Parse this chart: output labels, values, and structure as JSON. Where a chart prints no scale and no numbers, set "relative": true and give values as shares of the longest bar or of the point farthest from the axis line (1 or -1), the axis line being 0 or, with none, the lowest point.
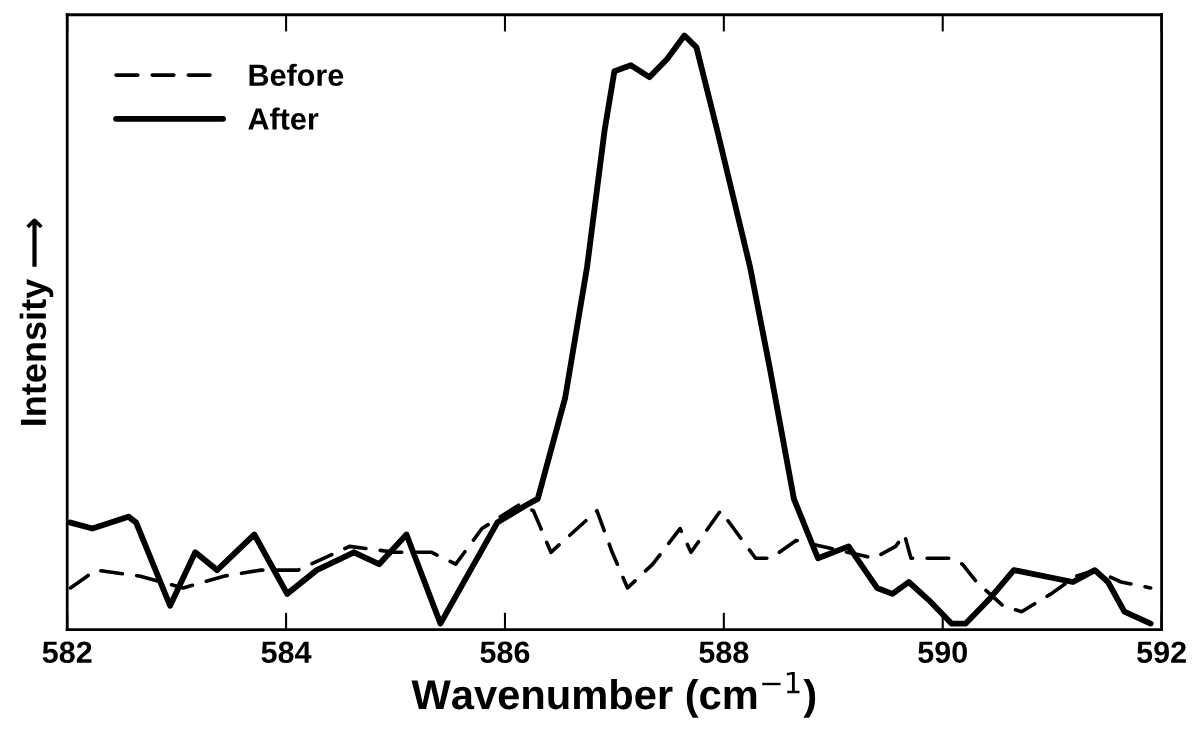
{
  "chart_data": {
    "type": "line",
    "relative": true,
    "xlabel": "Wavenumber (cm$^{−1}$)",
    "ylabel": "Intensity ⟶",
    "xlim": [
      582,
      592
    ],
    "xticks": [
      582,
      584,
      586,
      588,
      590,
      592
    ],
    "tick_labels": "x",
    "grid": false,
    "legend": "top left",
    "series": [
      {
        "name": "Before",
        "color": "#000000",
        "line_style": "dashed",
        "x": [
          582.03,
          582.26,
          582.66,
          583.06,
          583.44,
          583.77,
          584.11,
          584.58,
          584.99,
          585.33,
          585.55,
          585.79,
          586.13,
          586.26,
          586.42,
          586.84,
          586.98,
          587.12,
          587.35,
          587.6,
          587.7,
          587.97,
          588.29,
          588.43,
          588.66,
          589.37,
          589.57,
          589.65,
          589.71,
          590.08,
          590.18,
          590.31,
          590.55,
          590.72,
          590.99,
          591.22,
          591.39,
          591.63,
          591.9
        ],
        "values": [
          0.07,
          0.1,
          0.09,
          0.07,
          0.09,
          0.1,
          0.1,
          0.14,
          0.13,
          0.13,
          0.11,
          0.17,
          0.21,
          0.2,
          0.13,
          0.2,
          0.13,
          0.07,
          0.11,
          0.17,
          0.13,
          0.2,
          0.12,
          0.12,
          0.15,
          0.12,
          0.14,
          0.16,
          0.12,
          0.12,
          0.11,
          0.08,
          0.04,
          0.03,
          0.06,
          0.09,
          0.1,
          0.08,
          0.07
        ]
      },
      {
        "name": "After",
        "color": "#000000",
        "line_style": "solid",
        "x": [
          582.03,
          582.23,
          582.56,
          582.63,
          582.94,
          583.17,
          583.37,
          583.71,
          584.01,
          584.28,
          584.62,
          584.85,
          585.1,
          585.41,
          585.93,
          586.2,
          586.3,
          586.55,
          586.75,
          586.91,
          587.0,
          587.15,
          587.32,
          587.48,
          587.64,
          587.75,
          587.94,
          588.24,
          588.42,
          588.64,
          588.86,
          589.14,
          589.4,
          589.54,
          589.69,
          589.87,
          590.08,
          590.21,
          590.42,
          590.65,
          591.19,
          591.39,
          591.51,
          591.66,
          591.9
        ],
        "values": [
          0.18,
          0.17,
          0.19,
          0.18,
          0.04,
          0.13,
          0.1,
          0.16,
          0.06,
          0.1,
          0.13,
          0.11,
          0.16,
          0.01,
          0.18,
          0.21,
          0.22,
          0.39,
          0.61,
          0.84,
          0.94,
          0.95,
          0.93,
          0.96,
          1.0,
          0.98,
          0.84,
          0.61,
          0.44,
          0.22,
          0.12,
          0.14,
          0.07,
          0.06,
          0.08,
          0.05,
          0.01,
          0.01,
          0.05,
          0.1,
          0.08,
          0.1,
          0.08,
          0.03,
          0.01
        ]
      }
    ]
  }
}
